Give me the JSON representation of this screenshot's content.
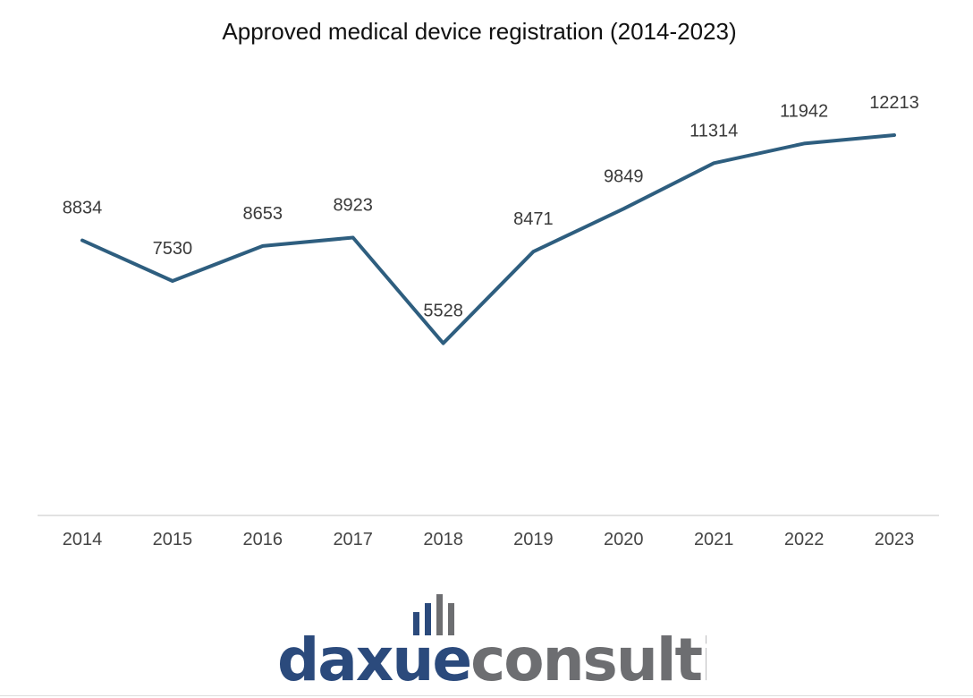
{
  "chart_data": {
    "type": "line",
    "title": "Approved medical device registration (2014-2023)",
    "xlabel": "",
    "ylabel": "",
    "categories": [
      "2014",
      "2015",
      "2016",
      "2017",
      "2018",
      "2019",
      "2020",
      "2021",
      "2022",
      "2023"
    ],
    "values": [
      8834,
      7530,
      8653,
      8923,
      5528,
      8471,
      9849,
      11314,
      11942,
      12213
    ],
    "ylim": [
      0,
      13000
    ],
    "grid": false,
    "legend": "none",
    "line_color": "#2e5e7f",
    "axis_color": "#d9d9d9"
  },
  "logo": {
    "part1": "daxue",
    "part2": "consulting",
    "part1_color": "#2b4a7c",
    "part2_color": "#6d6e71",
    "icon": "bar-graph-icon"
  }
}
